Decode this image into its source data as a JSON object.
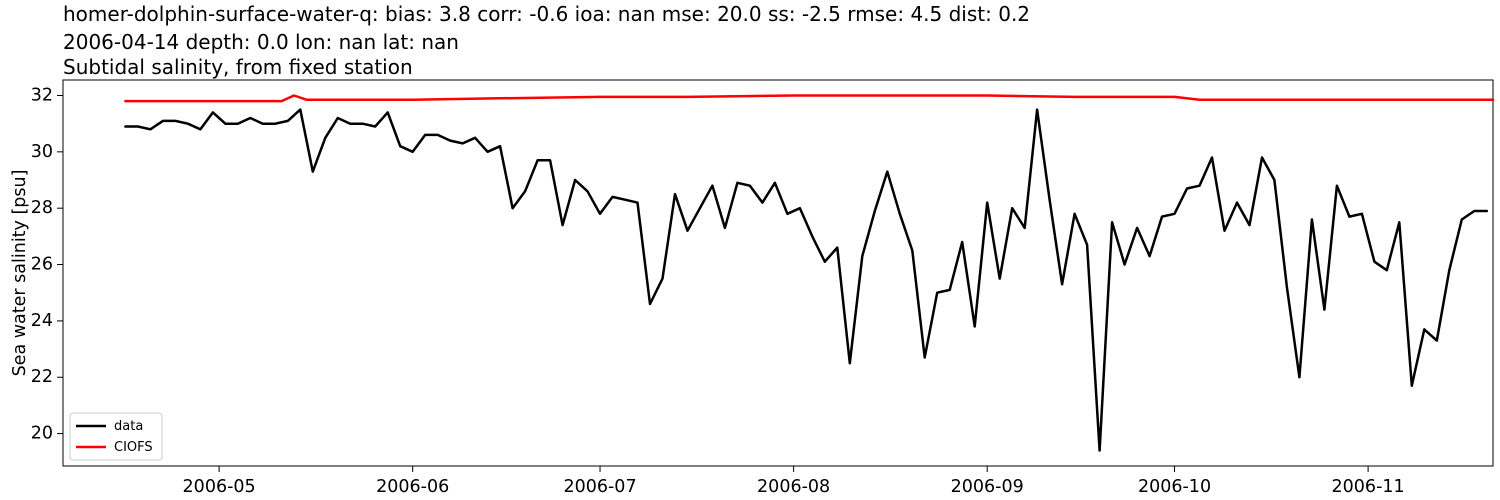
{
  "chart_data": {
    "type": "line",
    "title_lines": [
      "homer-dolphin-surface-water-q: bias: 3.8  corr: -0.6  ioa: nan  mse: 20.0  ss: -2.5  rmse: 4.5  dist: 0.2",
      "2006-04-14 depth: 0.0 lon: nan lat: nan",
      "Subtidal salinity, from fixed station"
    ],
    "ylabel": "Sea water salinity [psu]",
    "xlabel": "",
    "x_ticks": [
      "2006-05",
      "2006-06",
      "2006-07",
      "2006-08",
      "2006-09",
      "2006-10",
      "2006-11"
    ],
    "x_tick_dates": [
      "2006-05-01",
      "2006-06-01",
      "2006-07-01",
      "2006-08-01",
      "2006-09-01",
      "2006-10-01",
      "2006-11-01"
    ],
    "xlim": [
      "2006-04-06",
      "2006-11-21"
    ],
    "y_ticks": [
      20,
      22,
      24,
      26,
      28,
      30,
      32
    ],
    "ylim": [
      18.85,
      32.55
    ],
    "grid": false,
    "legend_position": "lower-left",
    "series": [
      {
        "name": "data",
        "color": "#000000",
        "points": [
          [
            "2006-04-16",
            30.9
          ],
          [
            "2006-04-18",
            30.9
          ],
          [
            "2006-04-20",
            30.8
          ],
          [
            "2006-04-22",
            31.1
          ],
          [
            "2006-04-24",
            31.1
          ],
          [
            "2006-04-26",
            31.0
          ],
          [
            "2006-04-28",
            30.8
          ],
          [
            "2006-04-30",
            31.4
          ],
          [
            "2006-05-02",
            31.0
          ],
          [
            "2006-05-04",
            31.0
          ],
          [
            "2006-05-06",
            31.2
          ],
          [
            "2006-05-08",
            31.0
          ],
          [
            "2006-05-10",
            31.0
          ],
          [
            "2006-05-12",
            31.1
          ],
          [
            "2006-05-14",
            31.5
          ],
          [
            "2006-05-16",
            29.3
          ],
          [
            "2006-05-18",
            30.5
          ],
          [
            "2006-05-20",
            31.2
          ],
          [
            "2006-05-22",
            31.0
          ],
          [
            "2006-05-24",
            31.0
          ],
          [
            "2006-05-26",
            30.9
          ],
          [
            "2006-05-28",
            31.4
          ],
          [
            "2006-05-30",
            30.2
          ],
          [
            "2006-06-01",
            30.0
          ],
          [
            "2006-06-03",
            30.6
          ],
          [
            "2006-06-05",
            30.6
          ],
          [
            "2006-06-07",
            30.4
          ],
          [
            "2006-06-09",
            30.3
          ],
          [
            "2006-06-11",
            30.5
          ],
          [
            "2006-06-13",
            30.0
          ],
          [
            "2006-06-15",
            30.2
          ],
          [
            "2006-06-17",
            28.0
          ],
          [
            "2006-06-19",
            28.6
          ],
          [
            "2006-06-21",
            29.7
          ],
          [
            "2006-06-23",
            29.7
          ],
          [
            "2006-06-25",
            27.4
          ],
          [
            "2006-06-27",
            29.0
          ],
          [
            "2006-06-29",
            28.6
          ],
          [
            "2006-07-01",
            27.8
          ],
          [
            "2006-07-03",
            28.4
          ],
          [
            "2006-07-05",
            28.3
          ],
          [
            "2006-07-07",
            28.2
          ],
          [
            "2006-07-09",
            24.6
          ],
          [
            "2006-07-11",
            25.5
          ],
          [
            "2006-07-13",
            28.5
          ],
          [
            "2006-07-15",
            27.2
          ],
          [
            "2006-07-17",
            28.0
          ],
          [
            "2006-07-19",
            28.8
          ],
          [
            "2006-07-21",
            27.3
          ],
          [
            "2006-07-23",
            28.9
          ],
          [
            "2006-07-25",
            28.8
          ],
          [
            "2006-07-27",
            28.2
          ],
          [
            "2006-07-29",
            28.9
          ],
          [
            "2006-07-31",
            27.8
          ],
          [
            "2006-08-02",
            28.0
          ],
          [
            "2006-08-04",
            27.0
          ],
          [
            "2006-08-06",
            26.1
          ],
          [
            "2006-08-08",
            26.6
          ],
          [
            "2006-08-10",
            22.5
          ],
          [
            "2006-08-12",
            26.3
          ],
          [
            "2006-08-14",
            27.9
          ],
          [
            "2006-08-16",
            29.3
          ],
          [
            "2006-08-18",
            27.8
          ],
          [
            "2006-08-20",
            26.5
          ],
          [
            "2006-08-22",
            22.7
          ],
          [
            "2006-08-24",
            25.0
          ],
          [
            "2006-08-26",
            25.1
          ],
          [
            "2006-08-28",
            26.8
          ],
          [
            "2006-08-30",
            23.8
          ],
          [
            "2006-09-01",
            28.2
          ],
          [
            "2006-09-03",
            25.5
          ],
          [
            "2006-09-05",
            28.0
          ],
          [
            "2006-09-07",
            27.3
          ],
          [
            "2006-09-09",
            31.5
          ],
          [
            "2006-09-11",
            28.3
          ],
          [
            "2006-09-13",
            25.3
          ],
          [
            "2006-09-15",
            27.8
          ],
          [
            "2006-09-17",
            26.7
          ],
          [
            "2006-09-19",
            19.4
          ],
          [
            "2006-09-21",
            27.5
          ],
          [
            "2006-09-23",
            26.0
          ],
          [
            "2006-09-25",
            27.3
          ],
          [
            "2006-09-27",
            26.3
          ],
          [
            "2006-09-29",
            27.7
          ],
          [
            "2006-10-01",
            27.8
          ],
          [
            "2006-10-03",
            28.7
          ],
          [
            "2006-10-05",
            28.8
          ],
          [
            "2006-10-07",
            29.8
          ],
          [
            "2006-10-09",
            27.2
          ],
          [
            "2006-10-11",
            28.2
          ],
          [
            "2006-10-13",
            27.4
          ],
          [
            "2006-10-15",
            29.8
          ],
          [
            "2006-10-17",
            29.0
          ],
          [
            "2006-10-19",
            25.2
          ],
          [
            "2006-10-21",
            22.0
          ],
          [
            "2006-10-23",
            27.6
          ],
          [
            "2006-10-25",
            24.4
          ],
          [
            "2006-10-27",
            28.8
          ],
          [
            "2006-10-29",
            27.7
          ],
          [
            "2006-10-31",
            27.8
          ],
          [
            "2006-11-02",
            26.1
          ],
          [
            "2006-11-04",
            25.8
          ],
          [
            "2006-11-06",
            27.5
          ],
          [
            "2006-11-08",
            21.7
          ],
          [
            "2006-11-10",
            23.7
          ],
          [
            "2006-11-12",
            23.3
          ],
          [
            "2006-11-14",
            25.8
          ],
          [
            "2006-11-16",
            27.6
          ],
          [
            "2006-11-18",
            27.9
          ],
          [
            "2006-11-20",
            27.9
          ]
        ]
      },
      {
        "name": "CIOFS",
        "color": "#ff0000",
        "points": [
          [
            "2006-04-16",
            31.8
          ],
          [
            "2006-05-01",
            31.8
          ],
          [
            "2006-05-08",
            31.8
          ],
          [
            "2006-05-11",
            31.8
          ],
          [
            "2006-05-13",
            32.0
          ],
          [
            "2006-05-15",
            31.85
          ],
          [
            "2006-06-01",
            31.85
          ],
          [
            "2006-06-15",
            31.9
          ],
          [
            "2006-07-01",
            31.95
          ],
          [
            "2006-07-15",
            31.95
          ],
          [
            "2006-08-01",
            32.0
          ],
          [
            "2006-09-01",
            32.0
          ],
          [
            "2006-09-15",
            31.95
          ],
          [
            "2006-10-01",
            31.95
          ],
          [
            "2006-10-05",
            31.85
          ],
          [
            "2006-10-20",
            31.85
          ],
          [
            "2006-11-21",
            31.85
          ]
        ]
      }
    ]
  }
}
